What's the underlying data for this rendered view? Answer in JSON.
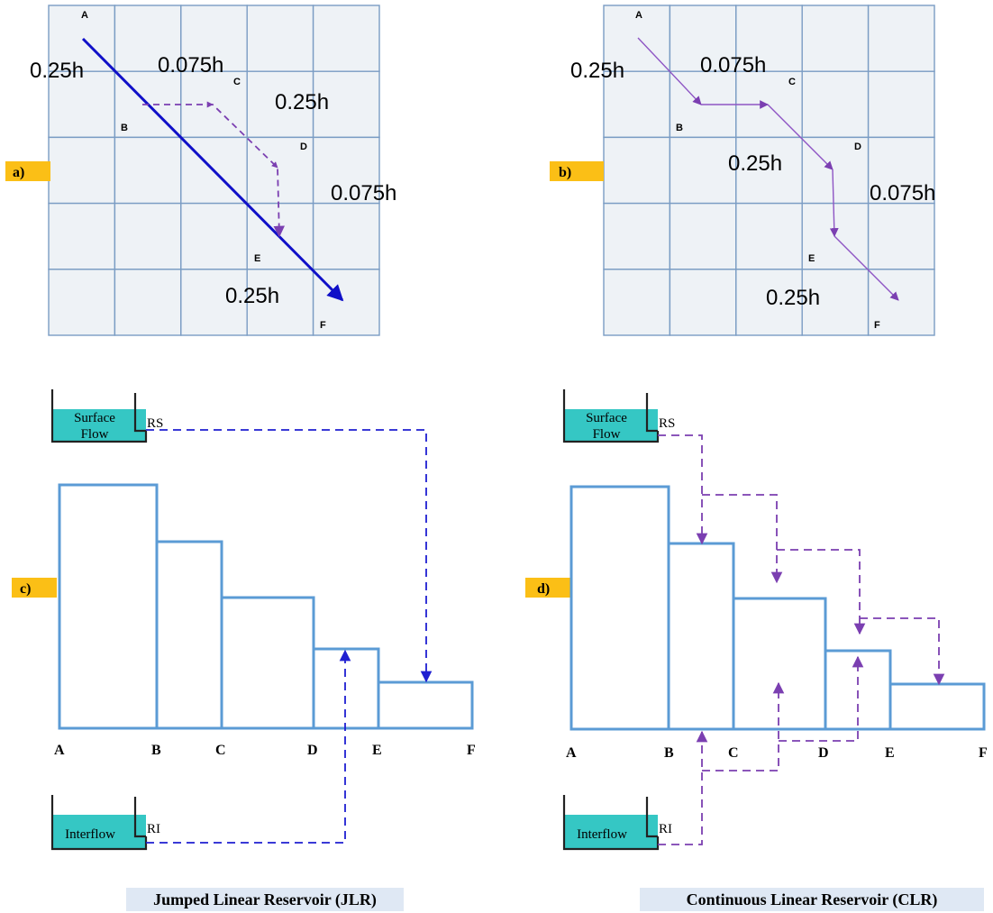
{
  "panels": {
    "a": {
      "tag": "a)",
      "time_labels": [
        "0.25h",
        "0.075h",
        "0.25h",
        "0.075h",
        "0.25h"
      ]
    },
    "b": {
      "tag": "b)",
      "time_labels": [
        "0.25h",
        "0.075h",
        "0.25h",
        "0.075h",
        "0.25h"
      ]
    },
    "c": {
      "tag": "c)"
    },
    "d": {
      "tag": "d)"
    }
  },
  "grid_points": [
    "A",
    "B",
    "C",
    "D",
    "E",
    "F"
  ],
  "bar_axis_labels": [
    "A",
    "B",
    "C",
    "D",
    "E",
    "F"
  ],
  "reservoirs": {
    "surface": {
      "line1": "Surface",
      "line2": "Flow",
      "code": "RS"
    },
    "interflow": {
      "label": "Interflow",
      "code": "RI"
    }
  },
  "captions": {
    "jlr": "Jumped Linear Reservoir (JLR)",
    "clr": "Continuous Linear Reservoir (CLR)"
  },
  "colors": {
    "tag": "#fbbf16",
    "grid_line": "#7a9cc4",
    "bar_outline": "#5b9bd5",
    "jlr_arrow": "#1f1fd1",
    "clr_arrow": "#7b3fb1",
    "reservoir_water": "#35c7c4"
  }
}
